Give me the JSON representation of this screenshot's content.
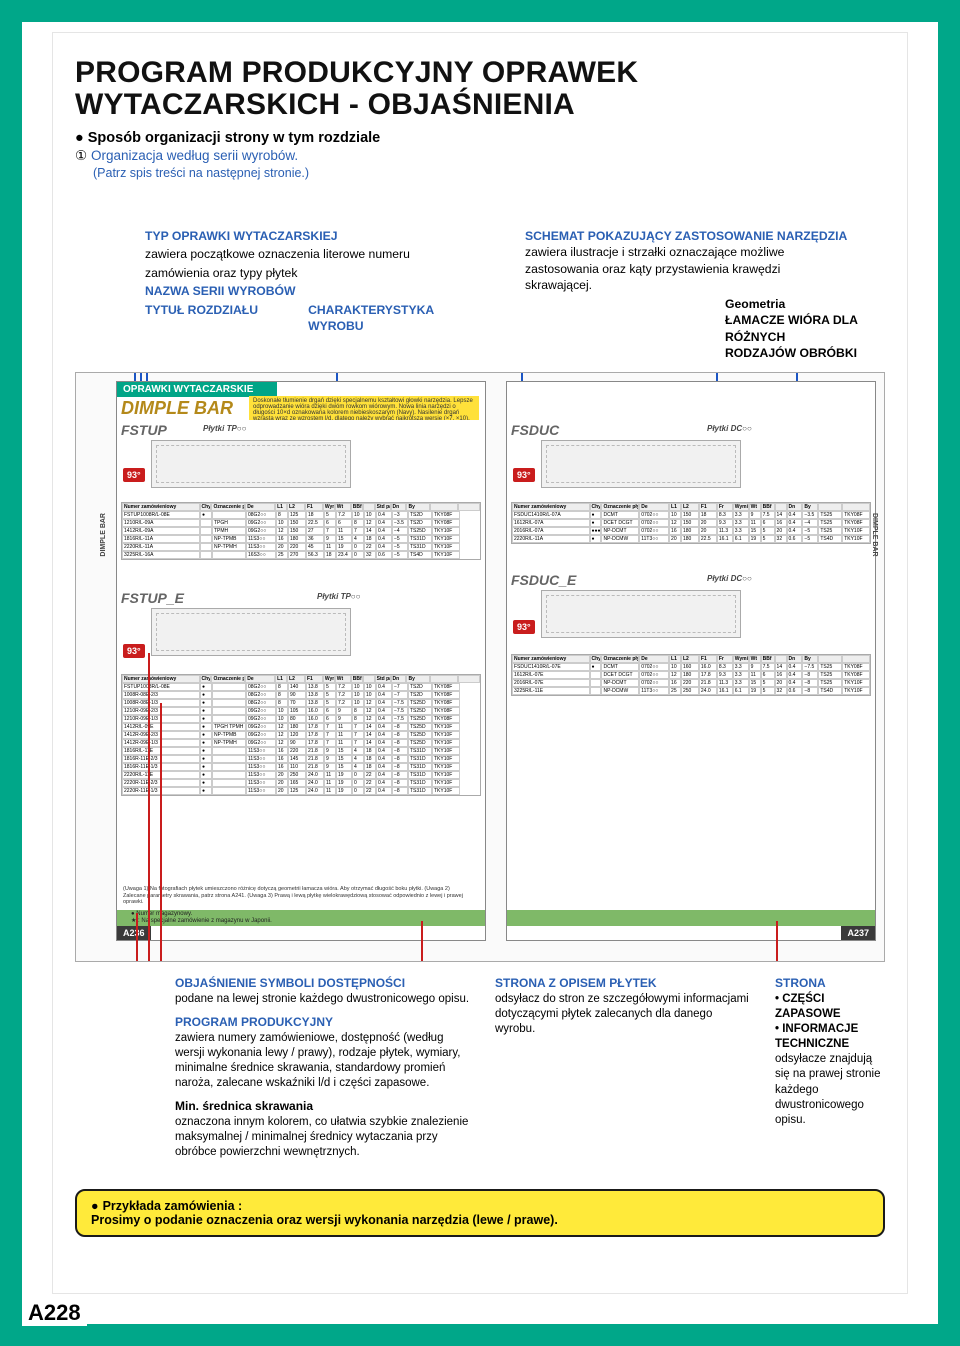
{
  "page": {
    "border_color": "#00a789",
    "page_code": "A228"
  },
  "title": {
    "line1": "PROGRAM PRODUKCYJNY OPRAWEK",
    "line2": "WYTACZARSKICH - OBJAŚNIENIA"
  },
  "intro": {
    "bullet": "Sposób organizacji strony w tym rozdziale",
    "sub": "Organizacja według serii wyrobów.",
    "note": "(Patrz spis treści na następnej stronie.)",
    "circled": "①"
  },
  "upper_left": {
    "l1": "TYP OPRAWKI WYTACZARSKIEJ",
    "l1b": "zawiera początkowe oznaczenia literowe numeru",
    "l1c": "zamówienia oraz typy płytek",
    "l2": "NAZWA SERII WYROBÓW",
    "l3": "TYTUŁ ROZDZIAŁU",
    "l4": "CHARAKTERYSTYKA",
    "l4b": "WYROBU"
  },
  "upper_right": {
    "l1": "SCHEMAT POKAZUJĄCY ZASTOSOWANIE NARZĘDZIA",
    "l1b": "zawiera ilustracje i strzałki oznaczające możliwe",
    "l1c": "zastosowania oraz kąty przystawienia krawędzi",
    "l1d": "skrawającej.",
    "geo": "Geometria",
    "lam1": "ŁAMACZE WIÓRA DLA RÓŻNYCH",
    "lam2": "RODZAJÓW OBRÓBKI"
  },
  "diagram": {
    "head_left": "OPRAWKI WYTACZARSKIE",
    "dimple": "DIMPLE BAR",
    "fstup": "FSTUP",
    "fstup_e": "FSTUP_E",
    "fsduc": "FSDUC",
    "fsduc_e": "FSDUC_E",
    "angle": "93°",
    "plate_tp": "Płytki TP",
    "plate_dc": "Płytki DC",
    "yellow_note": "Doskonałe tłumienie drgań dzięki specjalnemu kształtowi głowki narzędzia. Lepsze odprowadzanie wióra dzięki dwóm rowkom wiórowym. Nowa linia narzędzi o długości 10×d oznakowana kolorem niebieskoszarym (Navy). Nasilenie drgań wzrasta wraz ze wzrostem l/d, dlatego należy wybrać najkrótszą wersję (×7, ×10).",
    "side_label": "DIMPLE BAR",
    "page_l": "A236",
    "page_r": "A237",
    "foot_l": "● Numer magazynowy.\\n★ : Na specjalne zamówienie z magazynu w Japonii.",
    "left_table_header": [
      "Numer zamówieniowy",
      "Chyt",
      "Oznaczenie płytki",
      "De",
      "L1",
      "L2",
      "F1",
      "Wymiary (mm)",
      "Wt",
      "BBf",
      "",
      "Std parts",
      "Dn",
      "By",
      "",
      ""
    ],
    "left_table_rows": [
      [
        "FSTUP1008R/L-08E",
        "●",
        "",
        "08G2○○",
        "8",
        "125",
        "18",
        "5",
        "7.2",
        "10",
        "10",
        "0.4",
        "−3",
        "TS2D",
        "TKY08F"
      ],
      [
        "1210R/L-09A",
        "",
        "TPGH",
        "09G2○○",
        "10",
        "150",
        "22.5",
        "6",
        "6",
        "8",
        "12",
        "0.4",
        "−3.5",
        "TS2D",
        "TKY08F"
      ],
      [
        "1412R/L-09A",
        "",
        "TPMH",
        "09G2○○",
        "12",
        "150",
        "27",
        "7",
        "11",
        "7",
        "14",
        "0.4",
        "−4",
        "TS25D",
        "TKY10F"
      ],
      [
        "1816R/L-11A",
        "",
        "NP-TPMB",
        "11S3○○",
        "16",
        "180",
        "36",
        "9",
        "15",
        "4",
        "18",
        "0.4",
        "−5",
        "TS31D",
        "TKY10F"
      ],
      [
        "2220R/L-11A",
        "",
        "NP-TPMH",
        "11S3○○",
        "20",
        "220",
        "45",
        "11",
        "19",
        "0",
        "22",
        "0.4",
        "−5",
        "TS31D",
        "TKY10F"
      ],
      [
        "3225R/L-16A",
        "",
        "",
        "16S3○○",
        "25",
        "270",
        "56.3",
        "18",
        "23.4",
        "0",
        "32",
        "0.6",
        "−5",
        "TS4D",
        "TKY10F"
      ]
    ],
    "right_table_header": [
      "Numer zamówieniowy",
      "Chyt",
      "Oznaczenie płytki",
      "De",
      "L1",
      "L2",
      "F1",
      "Fr",
      "Wymiary (mm)",
      "Wt",
      "BBf",
      "",
      "Dn",
      "By",
      "",
      ""
    ],
    "right_table_rows": [
      [
        "FSDUC1410R/L-07A",
        "●",
        "DCMT",
        "0702○○",
        "10",
        "150",
        "18",
        "8.3",
        "3.3",
        "9",
        "7.5",
        "14",
        "0.4",
        "−3.5",
        "TS25",
        "TKY08F"
      ],
      [
        "1612R/L-07A",
        "●",
        "DCET DCGT",
        "0702○○",
        "12",
        "150",
        "20",
        "9.3",
        "3.3",
        "11",
        "6",
        "16",
        "0.4",
        "−4",
        "TS25",
        "TKY08F"
      ],
      [
        "2016R/L-07A",
        "●●●",
        "NP-DCMT",
        "0702○○",
        "16",
        "180",
        "20",
        "11.3",
        "3.3",
        "15",
        "5",
        "20",
        "0.4",
        "−5",
        "TS25",
        "TKY10F"
      ],
      [
        "2220R/L-11A",
        "●",
        "NP-DCMW",
        "11T3○○",
        "20",
        "180",
        "22.5",
        "16.1",
        "6.1",
        "19",
        "5",
        "32",
        "0.6",
        "−5",
        "TS4D",
        "TKY10F"
      ]
    ],
    "mid_table_rows": [
      [
        "FSTUP1008R/L-08E",
        "●",
        "",
        "08G2○○",
        "8",
        "140",
        "13.8",
        "5",
        "7.2",
        "10",
        "10",
        "0.4",
        "−7",
        "TS2D",
        "TKY08F"
      ],
      [
        "1008R-08E-2/3",
        "●",
        "",
        "08G2○○",
        "8",
        "90",
        "13.8",
        "5",
        "7.2",
        "10",
        "10",
        "0.4",
        "−7",
        "TS2D",
        "TKY08F"
      ],
      [
        "1008R-08E-1/3",
        "●",
        "",
        "08G2○○",
        "8",
        "70",
        "13.8",
        "5",
        "7.2",
        "10",
        "12",
        "0.4",
        "−7.5",
        "TS25D",
        "TKY08F"
      ],
      [
        "1210R-09E-2/3",
        "●",
        "",
        "09G2○○",
        "10",
        "105",
        "16.0",
        "6",
        "9",
        "8",
        "12",
        "0.4",
        "−7.5",
        "TS25D",
        "TKY08F"
      ],
      [
        "1210R-09E-1/3",
        "●",
        "",
        "09G2○○",
        "10",
        "80",
        "16.0",
        "6",
        "9",
        "8",
        "12",
        "0.4",
        "−7.5",
        "TS25D",
        "TKY08F"
      ],
      [
        "1412R/L-09E",
        "●",
        "TPGH TPMH",
        "09G2○○",
        "12",
        "180",
        "17.8",
        "7",
        "11",
        "7",
        "14",
        "0.4",
        "−8",
        "TS25D",
        "TKY10F"
      ],
      [
        "1412R-09E-2/3",
        "●",
        "NP-TPMB",
        "09G2○○",
        "12",
        "120",
        "17.8",
        "7",
        "11",
        "7",
        "14",
        "0.4",
        "−8",
        "TS25D",
        "TKY10F"
      ],
      [
        "1412R-09E-1/3",
        "●",
        "NP-TPMH",
        "09G2○○",
        "12",
        "90",
        "17.8",
        "7",
        "11",
        "7",
        "14",
        "0.4",
        "−8",
        "TS25D",
        "TKY10F"
      ],
      [
        "1816R/L-11E",
        "●",
        "",
        "11S3○○",
        "16",
        "220",
        "21.8",
        "9",
        "15",
        "4",
        "18",
        "0.4",
        "−8",
        "TS31D",
        "TKY10F"
      ],
      [
        "1816R-11E-2/3",
        "●",
        "",
        "11S3○○",
        "16",
        "145",
        "21.8",
        "9",
        "15",
        "4",
        "18",
        "0.4",
        "−8",
        "TS31D",
        "TKY10F"
      ],
      [
        "1816R-11E-1/3",
        "●",
        "",
        "11S3○○",
        "16",
        "110",
        "21.8",
        "9",
        "15",
        "4",
        "18",
        "0.4",
        "−8",
        "TS31D",
        "TKY10F"
      ],
      [
        "2220R/L-11E",
        "●",
        "",
        "11S3○○",
        "20",
        "250",
        "24.0",
        "11",
        "19",
        "0",
        "22",
        "0.4",
        "−8",
        "TS31D",
        "TKY10F"
      ],
      [
        "2220R-11E-2/3",
        "●",
        "",
        "11S3○○",
        "20",
        "165",
        "24.0",
        "11",
        "19",
        "0",
        "22",
        "0.4",
        "−8",
        "TS31D",
        "TKY10F"
      ],
      [
        "2220R-11E-1/3",
        "●",
        "",
        "11S3○○",
        "20",
        "125",
        "24.0",
        "11",
        "19",
        "0",
        "22",
        "0.4",
        "−8",
        "TS31D",
        "TKY10F"
      ]
    ],
    "right_mid_rows": [
      [
        "FSDUC1410R/L-07E",
        "●",
        "DCMT",
        "0702○○",
        "10",
        "160",
        "16.0",
        "8.3",
        "3.3",
        "9",
        "7.5",
        "14",
        "0.4",
        "−7.5",
        "TS25",
        "TKY08F"
      ],
      [
        "1612R/L-07E",
        "",
        "DCET DCGT",
        "0702○○",
        "12",
        "180",
        "17.8",
        "9.3",
        "3.3",
        "11",
        "6",
        "16",
        "0.4",
        "−8",
        "TS25",
        "TKY08F"
      ],
      [
        "2016R/L-07E",
        "",
        "NP-DCMT",
        "0702○○",
        "16",
        "220",
        "21.8",
        "11.3",
        "3.3",
        "15",
        "5",
        "20",
        "0.4",
        "−8",
        "TS25",
        "TKY10F"
      ],
      [
        "3225R/L-11E",
        "",
        "NP-DCMW",
        "11T3○○",
        "25",
        "250",
        "24.0",
        "16.1",
        "6.1",
        "19",
        "5",
        "32",
        "0.6",
        "−8",
        "TS4D",
        "TKY10F"
      ]
    ],
    "uwaga": "(Uwaga 1) Na fotografiach płytek umieszczono różnicę dotyczą geometrii łamacza wióra. Aby otrzymać długość boku płytki.\\n(Uwaga 2) Zalecane parametry skrawania, patrz strona A241.\\n(Uwaga 3) Prawą i lewą płytkę wielokrawędziową stosować odpowiednio z lewej i prawej oprawki."
  },
  "lower": {
    "a1_h": "OBJAŚNIENIE SYMBOLI DOSTĘPNOŚCI",
    "a1_t": "podane na lewej stronie każdego dwustronicowego opisu.",
    "a2_h": "PROGRAM PRODUKCYJNY",
    "a2_t": "zawiera numery zamówieniowe, dostępność (według wersji wykonania lewy / prawy), rodzaje płytek, wymiary, minimalne średnice skrawania, standardowy promień naroża, zalecane wskaźniki l/d i części zapasowe.",
    "a3_h": "Min. średnica skrawania",
    "a3_t": "oznaczona innym kolorem, co ułatwia szybkie znalezienie maksymalnej / minimalnej średnicy wytaczania przy obróbce powierzchni wewnętrznych.",
    "b1_h": "STRONA Z OPISEM PŁYTEK",
    "b1_t": "odsyłacz do stron ze szczegółowymi informacjami dotyczącymi płytek zalecanych dla danego wyrobu.",
    "c1_h": "STRONA",
    "c1_l1": "• CZĘŚCI ZAPASOWE",
    "c1_l2": "• INFORMACJE TECHNICZNE",
    "c1_t": "odsyłacze znajdują się na prawej stronie każdego dwustronicowego opisu."
  },
  "bottom_box": {
    "lead": "Przykłada zamówienia :",
    "text": "Prosimy o podanie oznaczenia oraz wersji wykonania narzędzia (lewe / prawe)."
  },
  "colors": {
    "teal": "#00a789",
    "blue": "#1b55c4",
    "red": "#c91d1d",
    "yellow": "#ffea3a",
    "dimple_gold": "#b4891a",
    "grey_foot": "#7fb968",
    "dark": "#3a3a3a"
  }
}
